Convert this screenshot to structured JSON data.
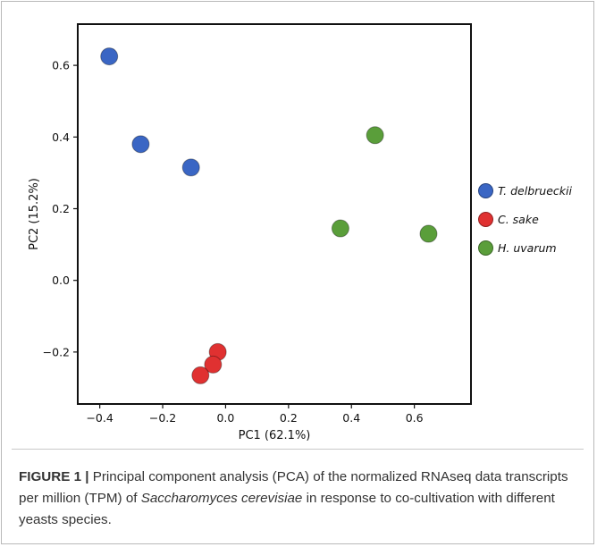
{
  "chart_data": {
    "type": "scatter",
    "xlabel": "PC1 (62.1%)",
    "ylabel": "PC2 (15.2%)",
    "xlim": [
      -0.47,
      0.78
    ],
    "ylim": [
      -0.345,
      0.715
    ],
    "xticks": [
      -0.4,
      -0.2,
      0.0,
      0.2,
      0.4,
      0.6
    ],
    "xtick_labels": [
      "−0.4",
      "−0.2",
      "0.0",
      "0.2",
      "0.4",
      "0.6"
    ],
    "yticks": [
      -0.2,
      0.0,
      0.2,
      0.4,
      0.6
    ],
    "ytick_labels": [
      "−0.2",
      "0.0",
      "0.2",
      "0.4",
      "0.6"
    ],
    "grid": false,
    "legend_position": "right",
    "series": [
      {
        "name": "T. delbrueckii",
        "color": "#3a66c4",
        "points": [
          {
            "x": -0.37,
            "y": 0.625
          },
          {
            "x": -0.27,
            "y": 0.38
          },
          {
            "x": -0.11,
            "y": 0.315
          }
        ]
      },
      {
        "name": "C. sake",
        "color": "#e03131",
        "points": [
          {
            "x": -0.025,
            "y": -0.2
          },
          {
            "x": -0.04,
            "y": -0.235
          },
          {
            "x": -0.08,
            "y": -0.265
          }
        ]
      },
      {
        "name": "H. uvarum",
        "color": "#5a9e3a",
        "points": [
          {
            "x": 0.475,
            "y": 0.405
          },
          {
            "x": 0.365,
            "y": 0.145
          },
          {
            "x": 0.645,
            "y": 0.13
          }
        ]
      }
    ]
  },
  "caption": {
    "label": "FIGURE 1 |",
    "text_before": " Principal component analysis (PCA) of the normalized RNAseq data transcripts per million (TPM) of ",
    "species": "Saccharomyces cerevisiae",
    "text_after": " in response to co-cultivation with different yeasts species."
  }
}
